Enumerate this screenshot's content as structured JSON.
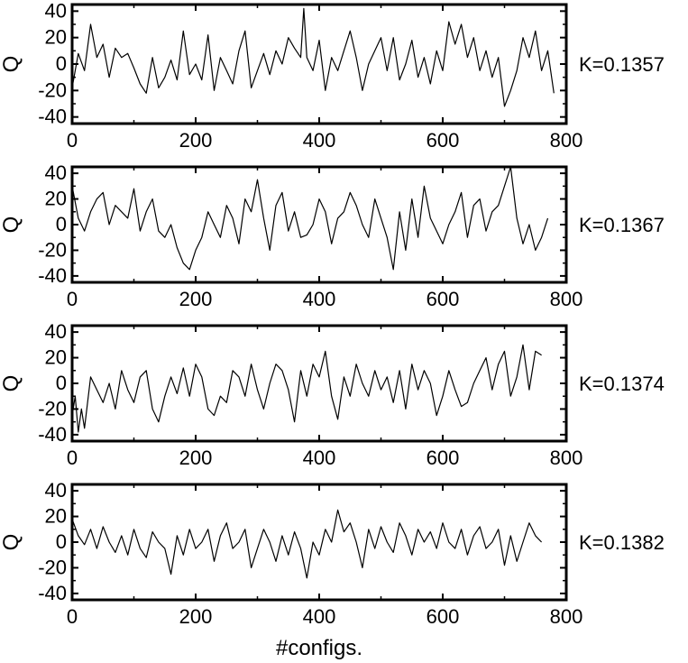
{
  "figure": {
    "xlabel": "#configs."
  },
  "chart_data": [
    {
      "type": "line",
      "panel_label": "K=0.1357",
      "ylabel": "Q",
      "xlim": [
        0,
        800
      ],
      "ylim": [
        -45,
        45
      ],
      "xticks": [
        0,
        200,
        400,
        600,
        800
      ],
      "yticks": [
        -40,
        -20,
        0,
        20,
        40
      ],
      "series": [
        {
          "x": [
            0,
            10,
            20,
            30,
            40,
            50,
            60,
            70,
            80,
            90,
            100,
            110,
            120,
            130,
            140,
            150,
            160,
            170,
            180,
            190,
            200,
            210,
            220,
            230,
            240,
            250,
            260,
            270,
            280,
            290,
            300,
            310,
            320,
            330,
            340,
            350,
            360,
            370,
            375,
            380,
            390,
            400,
            410,
            420,
            430,
            440,
            450,
            460,
            470,
            480,
            490,
            500,
            510,
            520,
            530,
            540,
            550,
            560,
            570,
            580,
            590,
            600,
            610,
            620,
            630,
            640,
            650,
            660,
            670,
            680,
            690,
            700,
            710,
            720,
            730,
            740,
            750,
            760,
            770,
            780
          ],
          "y": [
            -18,
            8,
            -5,
            30,
            5,
            15,
            -10,
            12,
            5,
            8,
            -3,
            -15,
            -22,
            5,
            -18,
            -10,
            3,
            -12,
            25,
            -8,
            0,
            -12,
            22,
            -20,
            5,
            -5,
            -15,
            10,
            25,
            -18,
            -5,
            8,
            -8,
            10,
            0,
            20,
            12,
            5,
            42,
            5,
            -5,
            18,
            -20,
            5,
            -5,
            10,
            25,
            5,
            -20,
            0,
            10,
            20,
            -5,
            20,
            -12,
            0,
            18,
            -10,
            5,
            -15,
            10,
            -5,
            32,
            15,
            30,
            5,
            20,
            -5,
            10,
            -10,
            5,
            -32,
            -20,
            -5,
            20,
            5,
            25,
            -5,
            10,
            -22
          ]
        }
      ]
    },
    {
      "type": "line",
      "panel_label": "K=0.1367",
      "ylabel": "Q",
      "xlim": [
        0,
        800
      ],
      "ylim": [
        -45,
        45
      ],
      "xticks": [
        0,
        200,
        400,
        600,
        800
      ],
      "yticks": [
        -40,
        -20,
        0,
        20,
        40
      ],
      "series": [
        {
          "x": [
            0,
            10,
            20,
            30,
            40,
            50,
            60,
            70,
            80,
            90,
            100,
            110,
            120,
            130,
            140,
            150,
            160,
            170,
            180,
            190,
            200,
            210,
            220,
            230,
            240,
            250,
            260,
            270,
            280,
            290,
            300,
            310,
            320,
            330,
            340,
            350,
            360,
            370,
            380,
            390,
            400,
            410,
            420,
            430,
            440,
            450,
            460,
            470,
            480,
            490,
            500,
            510,
            520,
            530,
            540,
            550,
            560,
            570,
            580,
            590,
            600,
            610,
            620,
            630,
            640,
            650,
            660,
            670,
            680,
            690,
            700,
            710,
            720,
            730,
            740,
            750,
            760,
            770
          ],
          "y": [
            30,
            5,
            -5,
            10,
            20,
            25,
            0,
            15,
            10,
            5,
            28,
            -5,
            10,
            20,
            -5,
            -10,
            0,
            -18,
            -30,
            -35,
            -20,
            -10,
            10,
            0,
            -10,
            15,
            5,
            -15,
            20,
            10,
            35,
            5,
            -20,
            15,
            25,
            -5,
            10,
            -10,
            -8,
            0,
            20,
            10,
            -15,
            5,
            10,
            25,
            15,
            0,
            -10,
            20,
            5,
            -10,
            -35,
            10,
            -20,
            20,
            -10,
            30,
            5,
            -5,
            -15,
            0,
            10,
            25,
            -10,
            15,
            20,
            -5,
            10,
            15,
            30,
            45,
            5,
            -15,
            0,
            -20,
            -10,
            5
          ]
        }
      ]
    },
    {
      "type": "line",
      "panel_label": "K=0.1374",
      "ylabel": "Q",
      "xlim": [
        0,
        800
      ],
      "ylim": [
        -45,
        45
      ],
      "xticks": [
        0,
        200,
        400,
        600,
        800
      ],
      "yticks": [
        -40,
        -20,
        0,
        20,
        40
      ],
      "series": [
        {
          "x": [
            0,
            5,
            10,
            15,
            20,
            30,
            40,
            50,
            60,
            70,
            80,
            90,
            100,
            110,
            120,
            130,
            140,
            150,
            160,
            170,
            180,
            190,
            200,
            210,
            220,
            230,
            240,
            250,
            260,
            270,
            280,
            290,
            300,
            310,
            320,
            330,
            340,
            350,
            360,
            370,
            380,
            390,
            400,
            410,
            420,
            430,
            440,
            450,
            460,
            470,
            480,
            490,
            500,
            510,
            520,
            530,
            540,
            550,
            560,
            570,
            580,
            590,
            600,
            610,
            620,
            630,
            640,
            650,
            660,
            670,
            680,
            690,
            700,
            710,
            720,
            730,
            740,
            750,
            760
          ],
          "y": [
            -25,
            -10,
            -38,
            -20,
            -35,
            5,
            -5,
            -15,
            0,
            -20,
            10,
            -5,
            -15,
            5,
            10,
            -20,
            -30,
            -10,
            5,
            -8,
            12,
            -10,
            15,
            5,
            -20,
            -25,
            -10,
            -15,
            10,
            5,
            -10,
            15,
            -5,
            -20,
            0,
            15,
            10,
            -5,
            -30,
            10,
            -10,
            15,
            5,
            25,
            -10,
            -28,
            5,
            -10,
            15,
            0,
            -10,
            10,
            -5,
            5,
            -15,
            10,
            -20,
            15,
            -5,
            10,
            0,
            -25,
            -10,
            10,
            -5,
            -18,
            -15,
            0,
            10,
            20,
            -5,
            15,
            25,
            -10,
            5,
            30,
            -5,
            25,
            22
          ]
        }
      ]
    },
    {
      "type": "line",
      "panel_label": "K=0.1382",
      "ylabel": "Q",
      "xlim": [
        0,
        800
      ],
      "ylim": [
        -45,
        45
      ],
      "xticks": [
        0,
        200,
        400,
        600,
        800
      ],
      "yticks": [
        -40,
        -20,
        0,
        20,
        40
      ],
      "series": [
        {
          "x": [
            0,
            10,
            20,
            30,
            40,
            50,
            60,
            70,
            80,
            90,
            100,
            110,
            120,
            130,
            140,
            150,
            160,
            170,
            180,
            190,
            200,
            210,
            220,
            230,
            240,
            250,
            260,
            270,
            280,
            290,
            300,
            310,
            320,
            330,
            340,
            350,
            360,
            370,
            380,
            390,
            400,
            410,
            420,
            430,
            440,
            450,
            460,
            470,
            480,
            490,
            500,
            510,
            520,
            530,
            540,
            550,
            560,
            570,
            580,
            590,
            600,
            610,
            620,
            630,
            640,
            650,
            660,
            670,
            680,
            690,
            700,
            710,
            720,
            730,
            740,
            750,
            760
          ],
          "y": [
            18,
            5,
            -2,
            10,
            -5,
            12,
            0,
            -8,
            5,
            -10,
            10,
            -5,
            -12,
            8,
            0,
            -5,
            -25,
            5,
            -10,
            10,
            -5,
            0,
            10,
            -15,
            5,
            15,
            -5,
            0,
            10,
            -20,
            -5,
            10,
            0,
            -15,
            5,
            -10,
            8,
            -5,
            -28,
            0,
            -10,
            10,
            0,
            25,
            8,
            15,
            0,
            -20,
            10,
            -5,
            12,
            0,
            -8,
            15,
            5,
            -10,
            10,
            0,
            8,
            -5,
            15,
            0,
            -5,
            10,
            -10,
            5,
            12,
            -5,
            0,
            10,
            -18,
            5,
            -15,
            0,
            15,
            5,
            0
          ]
        }
      ]
    }
  ]
}
